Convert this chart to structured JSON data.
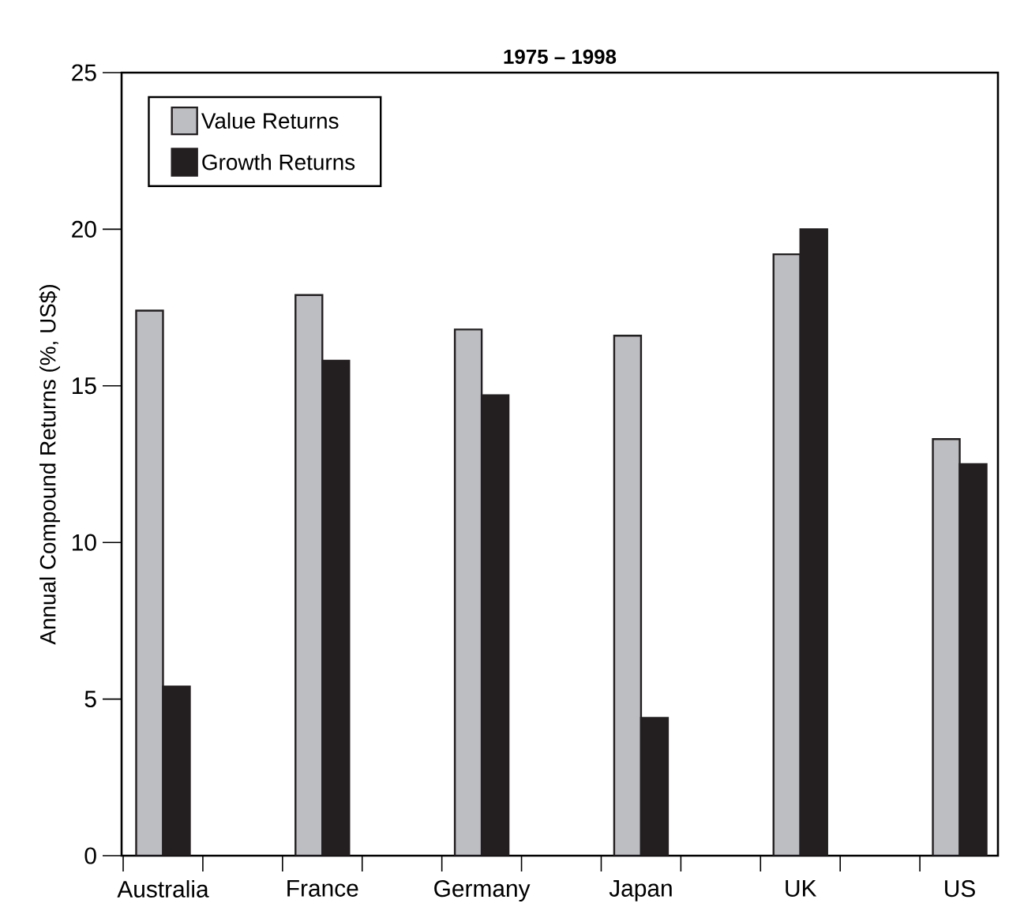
{
  "chart_data": {
    "type": "bar",
    "title": "1975 – 1998",
    "ylabel": "Annual Compound Returns (%, US$)",
    "categories": [
      "Australia",
      "France",
      "Germany",
      "Japan",
      "UK",
      "US"
    ],
    "series": [
      {
        "name": "Value Returns",
        "color": "#bdbec2",
        "values": [
          17.4,
          17.9,
          16.8,
          16.6,
          19.2,
          13.3
        ]
      },
      {
        "name": "Growth Returns",
        "color": "#231f20",
        "values": [
          5.4,
          15.8,
          14.7,
          4.4,
          20.0,
          12.5
        ]
      }
    ],
    "ylim": [
      0,
      25
    ],
    "yticks": [
      0,
      5,
      10,
      15,
      20,
      25
    ],
    "grid": false,
    "legend": "top left"
  }
}
